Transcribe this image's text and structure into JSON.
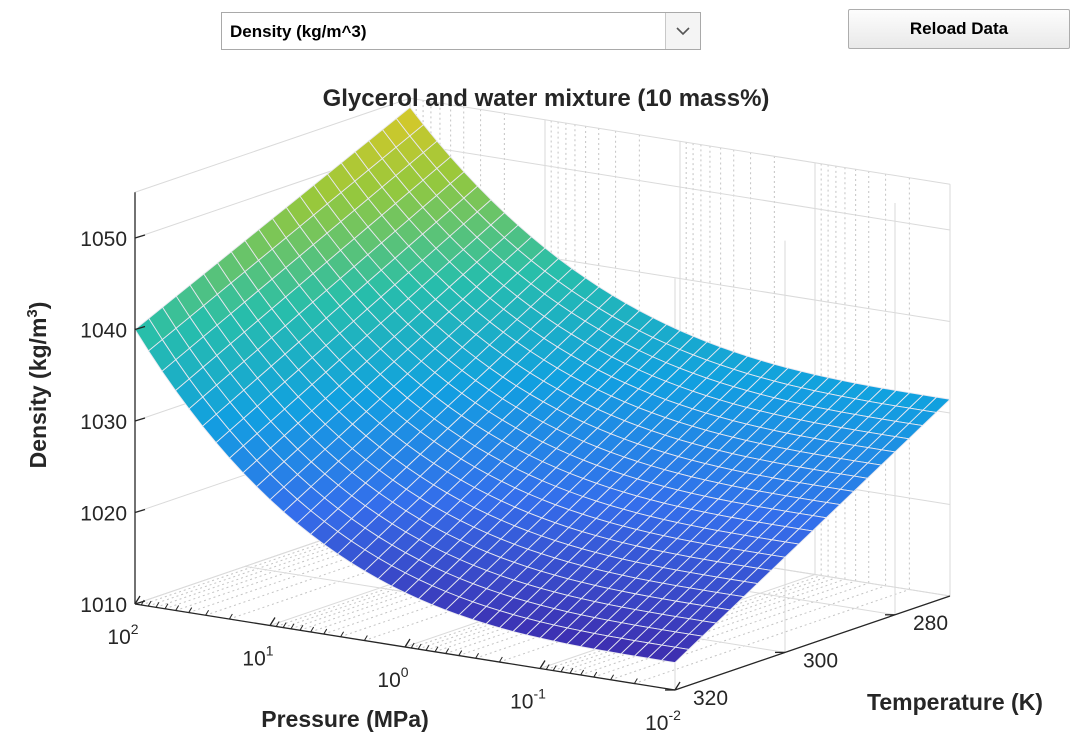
{
  "controls": {
    "dropdown_value": "Density (kg/m^3)",
    "reload_label": "Reload Data"
  },
  "chart_data": {
    "type": "surface",
    "title": "Glycerol and water mixture  (10 mass%)",
    "xlabel": "Pressure (MPa)",
    "ylabel": "Temperature (K)",
    "zlabel_main": "Density (kg/m",
    "zlabel_sup": "3",
    "zlabel_tail": ")",
    "x_scale": "log",
    "x_tick_base": "10",
    "x_ticks": [
      {
        "value": 100,
        "exp": "2"
      },
      {
        "value": 10,
        "exp": "1"
      },
      {
        "value": 1,
        "exp": "0"
      },
      {
        "value": 0.1,
        "exp": "-1"
      },
      {
        "value": 0.01,
        "exp": "-2"
      }
    ],
    "y_ticks": [
      "280",
      "300",
      "320"
    ],
    "z_ticks": [
      "1010",
      "1020",
      "1030",
      "1040",
      "1050"
    ],
    "zlim": [
      1010,
      1055
    ],
    "grid": true,
    "colormap": "parula",
    "surface_corners": [
      {
        "pressure_MPa": 100,
        "temperature_K": 270,
        "density": 1054
      },
      {
        "pressure_MPa": 100,
        "temperature_K": 320,
        "density": 1040
      },
      {
        "pressure_MPa": 0.01,
        "temperature_K": 270,
        "density": 1031.5
      },
      {
        "pressure_MPa": 0.01,
        "temperature_K": 320,
        "density": 1013
      }
    ]
  }
}
